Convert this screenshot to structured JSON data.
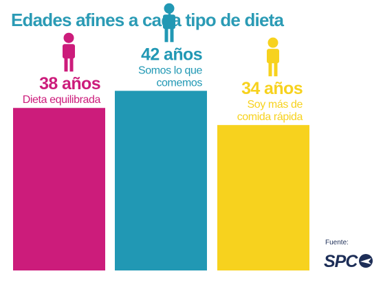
{
  "title": "Edades afines a cada tipo de dieta",
  "source": {
    "label": "Fuente:",
    "logo_text": "SPC"
  },
  "chart_data": {
    "type": "bar",
    "title": "Edades afines a cada tipo de dieta",
    "categories": [
      "Dieta equilibrada",
      "Somos lo que comemos",
      "Soy más de comida rápida"
    ],
    "values": [
      38,
      42,
      34
    ],
    "value_labels": [
      "38 años",
      "42 años",
      "34 años"
    ],
    "captions": [
      [
        "Dieta equilibrada"
      ],
      [
        "Somos lo que",
        "comemos"
      ],
      [
        "Soy más de",
        "comida rápida"
      ]
    ],
    "colors": [
      "#cc1c7b",
      "#2198b4",
      "#f7d21e"
    ],
    "icon": "person-icon",
    "ylim": [
      0,
      52
    ],
    "grid": false,
    "legend": "none"
  },
  "colors": {
    "title": "#2b9bb5",
    "logo": "#1d2e57"
  }
}
